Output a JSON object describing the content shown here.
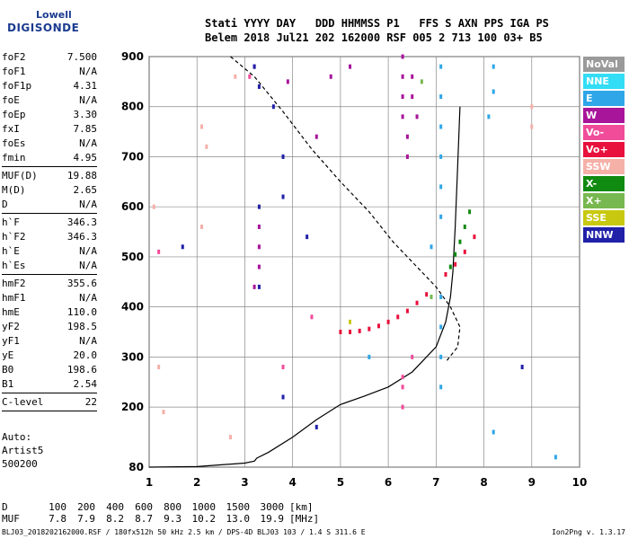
{
  "logo": {
    "line1": "Lowell",
    "line2": "DIGISONDE"
  },
  "header": {
    "line1": "Stati YYYY DAY   DDD HHMMSS P1   FFS S AXN PPS IGA PS",
    "line2": "Belem 2018 Jul21 202 162000 RSF 005 2 713 100 03+ B5"
  },
  "params": [
    {
      "name": "foF2",
      "value": "7.500"
    },
    {
      "name": "foF1",
      "value": "N/A"
    },
    {
      "name": "foF1p",
      "value": "4.31"
    },
    {
      "name": "foE",
      "value": "N/A"
    },
    {
      "name": "foEp",
      "value": "3.30"
    },
    {
      "name": "fxI",
      "value": "7.85"
    },
    {
      "name": "foEs",
      "value": "N/A"
    },
    {
      "name": "fmin",
      "value": "4.95"
    },
    {
      "sep": true
    },
    {
      "name": "MUF(D)",
      "value": "19.88"
    },
    {
      "name": "M(D)",
      "value": "2.65"
    },
    {
      "name": "D",
      "value": "N/A"
    },
    {
      "sep": true
    },
    {
      "name": "h`F",
      "value": "346.3"
    },
    {
      "name": "h`F2",
      "value": "346.3"
    },
    {
      "name": "h`E",
      "value": "N/A"
    },
    {
      "name": "h`Es",
      "value": "N/A"
    },
    {
      "sep": true
    },
    {
      "name": "hmF2",
      "value": "355.6"
    },
    {
      "name": "hmF1",
      "value": "N/A"
    },
    {
      "name": "hmE",
      "value": "110.0"
    },
    {
      "name": "yF2",
      "value": "198.5"
    },
    {
      "name": "yF1",
      "value": "N/A"
    },
    {
      "name": "yE",
      "value": "20.0"
    },
    {
      "name": "B0",
      "value": "198.6"
    },
    {
      "name": "B1",
      "value": "2.54"
    },
    {
      "sep": true
    },
    {
      "name": "C-level",
      "value": "22"
    },
    {
      "sep": true
    }
  ],
  "auto": {
    "line1": "Auto:",
    "line2": "Artist5",
    "line3": "500200"
  },
  "legend": [
    {
      "label": "NoVal",
      "color": "#9a9a9a"
    },
    {
      "label": "NNE",
      "color": "#33ddf5"
    },
    {
      "label": "E",
      "color": "#2ea6e8"
    },
    {
      "label": "W",
      "color": "#a8149a"
    },
    {
      "label": "Vo-",
      "color": "#f04c9a"
    },
    {
      "label": "Vo+",
      "color": "#e8103c"
    },
    {
      "label": "SSW",
      "color": "#f5b0a8"
    },
    {
      "label": "X-",
      "color": "#108a10"
    },
    {
      "label": "X+",
      "color": "#78b850"
    },
    {
      "label": "SSE",
      "color": "#c8c810"
    },
    {
      "label": "NNW",
      "color": "#2020a8"
    }
  ],
  "muf_table": {
    "d_label": "D",
    "d_values": [
      "100",
      "200",
      "400",
      "600",
      "800",
      "1000",
      "1500",
      "3000"
    ],
    "d_unit": "[km]",
    "muf_label": "MUF",
    "muf_values": [
      "7.8",
      "7.9",
      "8.2",
      "8.7",
      "9.3",
      "10.2",
      "13.0",
      "19.9"
    ],
    "muf_unit": "[MHz]"
  },
  "footer": "BLJ03_2018202162000.RSF / 180fx512h 50 kHz 2.5 km / DPS-4D BLJ03 103 / 1.4 S 311.6 E",
  "version": "Ion2Png v. 1.3.17",
  "chart_data": {
    "type": "scatter",
    "xlim": [
      1,
      10
    ],
    "ylim": [
      80,
      900
    ],
    "xticks": [
      "1",
      "2",
      "3",
      "4",
      "5",
      "6",
      "7",
      "8",
      "9",
      "10"
    ],
    "yticks": [
      "80",
      "200",
      "300",
      "400",
      "500",
      "600",
      "700",
      "800",
      "900"
    ],
    "grid": true,
    "profile_solid": {
      "x": [
        1.0,
        2.0,
        3.0,
        3.2,
        3.25,
        3.5,
        4.0,
        4.5,
        5.0,
        5.5,
        6.0,
        6.5,
        7.0,
        7.2,
        7.3,
        7.35,
        7.4,
        7.45,
        7.5
      ],
      "y": [
        80,
        81,
        88,
        92,
        98,
        110,
        140,
        175,
        205,
        222,
        240,
        270,
        320,
        370,
        420,
        470,
        560,
        680,
        800
      ]
    },
    "profile_dashed": {
      "x": [
        2.7,
        3.2,
        3.8,
        4.4,
        5.0,
        5.6,
        6.1,
        6.6,
        7.0,
        7.3,
        7.5,
        7.45,
        7.2
      ],
      "y": [
        900,
        860,
        790,
        715,
        650,
        590,
        530,
        480,
        440,
        400,
        360,
        320,
        290
      ]
    },
    "traces": [
      {
        "name": "Vo+",
        "color": "#e8103c",
        "x": [
          5.0,
          5.2,
          5.4,
          5.6,
          5.8,
          6.0,
          6.2,
          6.4,
          6.6,
          6.8,
          7.2,
          7.4,
          7.6,
          7.8
        ],
        "y": [
          350,
          350,
          352,
          356,
          362,
          370,
          380,
          392,
          408,
          425,
          465,
          485,
          510,
          540
        ]
      },
      {
        "name": "X-",
        "color": "#108a10",
        "x": [
          7.3,
          7.4,
          7.5,
          7.6,
          7.7
        ],
        "y": [
          480,
          505,
          530,
          560,
          590
        ]
      },
      {
        "name": "W",
        "color": "#a8149a",
        "x": [
          6.3,
          6.3,
          6.3,
          6.3,
          6.4,
          6.4,
          6.5,
          6.5,
          6.6,
          3.9,
          3.2,
          4.5,
          3.3,
          3.3,
          3.3,
          3.2,
          4.8,
          5.2
        ],
        "y": [
          900,
          860,
          820,
          780,
          740,
          700,
          860,
          820,
          780,
          850,
          880,
          740,
          560,
          520,
          480,
          440,
          860,
          880
        ]
      },
      {
        "name": "E",
        "color": "#2ea6e8",
        "x": [
          7.1,
          7.1,
          7.1,
          7.1,
          7.1,
          7.1,
          7.1,
          7.1,
          7.1,
          7.1,
          8.2,
          8.2,
          8.1,
          8.2,
          5.6,
          6.9,
          9.5
        ],
        "y": [
          880,
          820,
          760,
          700,
          640,
          580,
          420,
          360,
          300,
          240,
          880,
          830,
          780,
          150,
          300,
          520,
          100
        ]
      },
      {
        "name": "NNW",
        "color": "#2020a8",
        "x": [
          3.2,
          3.3,
          3.6,
          3.8,
          4.3,
          3.3,
          3.3,
          1.7,
          3.8,
          4.5,
          8.8,
          3.8
        ],
        "y": [
          880,
          840,
          800,
          700,
          540,
          600,
          440,
          520,
          220,
          160,
          280,
          620
        ]
      },
      {
        "name": "SSW",
        "color": "#f5b0a8",
        "x": [
          1.1,
          2.1,
          2.2,
          2.1,
          1.2,
          2.7,
          9.0,
          9.0,
          1.3,
          2.8
        ],
        "y": [
          600,
          760,
          720,
          560,
          280,
          140,
          800,
          760,
          190,
          860
        ]
      },
      {
        "name": "Vo-",
        "color": "#f04c9a",
        "x": [
          6.3,
          6.3,
          6.3,
          6.5,
          4.4,
          3.1,
          1.2,
          3.8
        ],
        "y": [
          260,
          240,
          200,
          300,
          380,
          860,
          510,
          280
        ]
      },
      {
        "name": "X+",
        "color": "#78b850",
        "x": [
          6.7,
          6.9
        ],
        "y": [
          850,
          420
        ]
      },
      {
        "name": "SSE",
        "color": "#c8c810",
        "x": [
          5.2
        ],
        "y": [
          370
        ]
      }
    ]
  }
}
